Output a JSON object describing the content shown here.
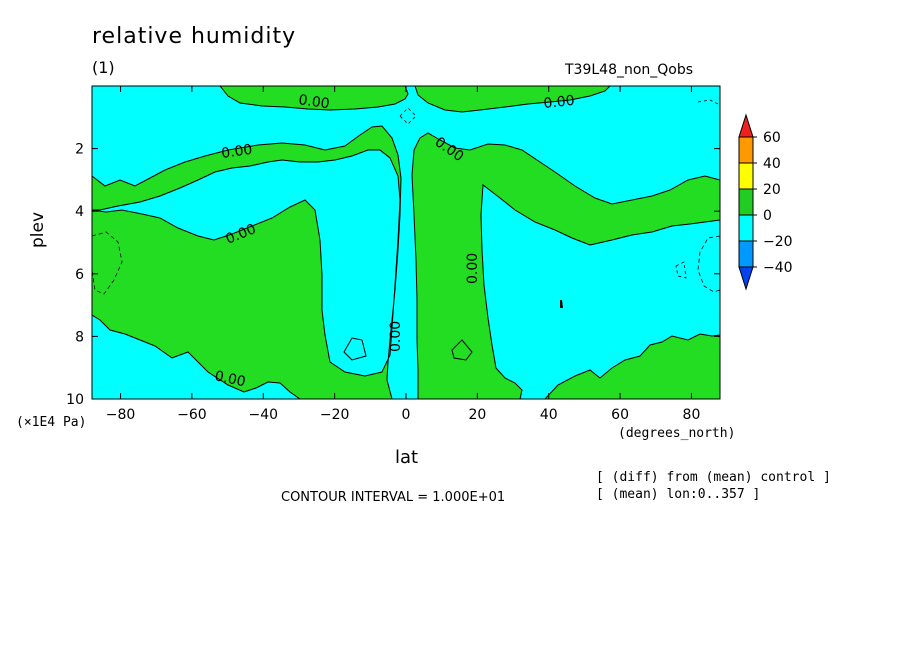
{
  "header": {
    "title": "relative humidity",
    "units_label": "(1)",
    "run_name": "T39L48_non_Qobs"
  },
  "footer": {
    "contour_interval": "CONTOUR INTERVAL = 1.000E+01",
    "note_diff": "[ (diff) from (mean) control ]",
    "note_mean": "[ (mean) lon:0..357 ]"
  },
  "chart_data": {
    "type": "contour",
    "xlabel": "lat",
    "xunits": "(degrees_north)",
    "ylabel": "plev",
    "yunits": "(×1E4 Pa)",
    "xlim": [
      -88,
      88
    ],
    "ylim": [
      10,
      0
    ],
    "xticks": [
      -80,
      -60,
      -40,
      -20,
      0,
      20,
      40,
      60,
      80
    ],
    "yticks": [
      2,
      4,
      6,
      8,
      10
    ],
    "contour_labels": [
      "0.00",
      "0.00",
      "0.00",
      "0.00",
      "0.00",
      "0.00",
      "0.00",
      "0.00"
    ],
    "colorbar": {
      "levels": [
        60,
        40,
        20,
        0,
        -20,
        -40
      ],
      "colors": {
        "above_40": "#ee2020",
        "c40_60": "#ff9900",
        "c20_40": "#ffff00",
        "c0_20": "#22cc22",
        "cm20_0": "#00ffff",
        "cm40_m20": "#0099ff",
        "below_m40": "#0044ee"
      }
    },
    "field_colors": {
      "positive": "#22dd22",
      "negative": "#00ffff"
    }
  }
}
